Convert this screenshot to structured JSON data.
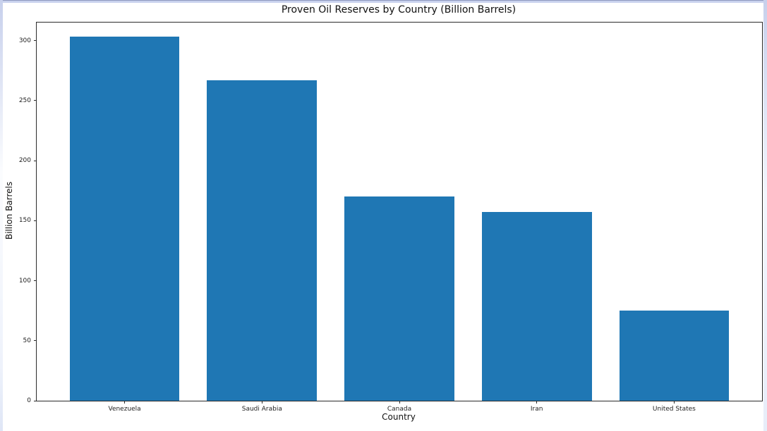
{
  "chart_data": {
    "type": "bar",
    "title": "Proven Oil Reserves by Country (Billion Barrels)",
    "xlabel": "Country",
    "ylabel": "Billion Barrels",
    "categories": [
      "Venezuela",
      "Saudi Arabia",
      "Canada",
      "Iran",
      "United States"
    ],
    "values": [
      303,
      267,
      170,
      157,
      75
    ],
    "yticks": [
      0,
      50,
      100,
      150,
      200,
      250,
      300
    ],
    "ylim": [
      0,
      315
    ],
    "bar_color": "#1f77b4",
    "grid": false,
    "legend_position": "none"
  }
}
